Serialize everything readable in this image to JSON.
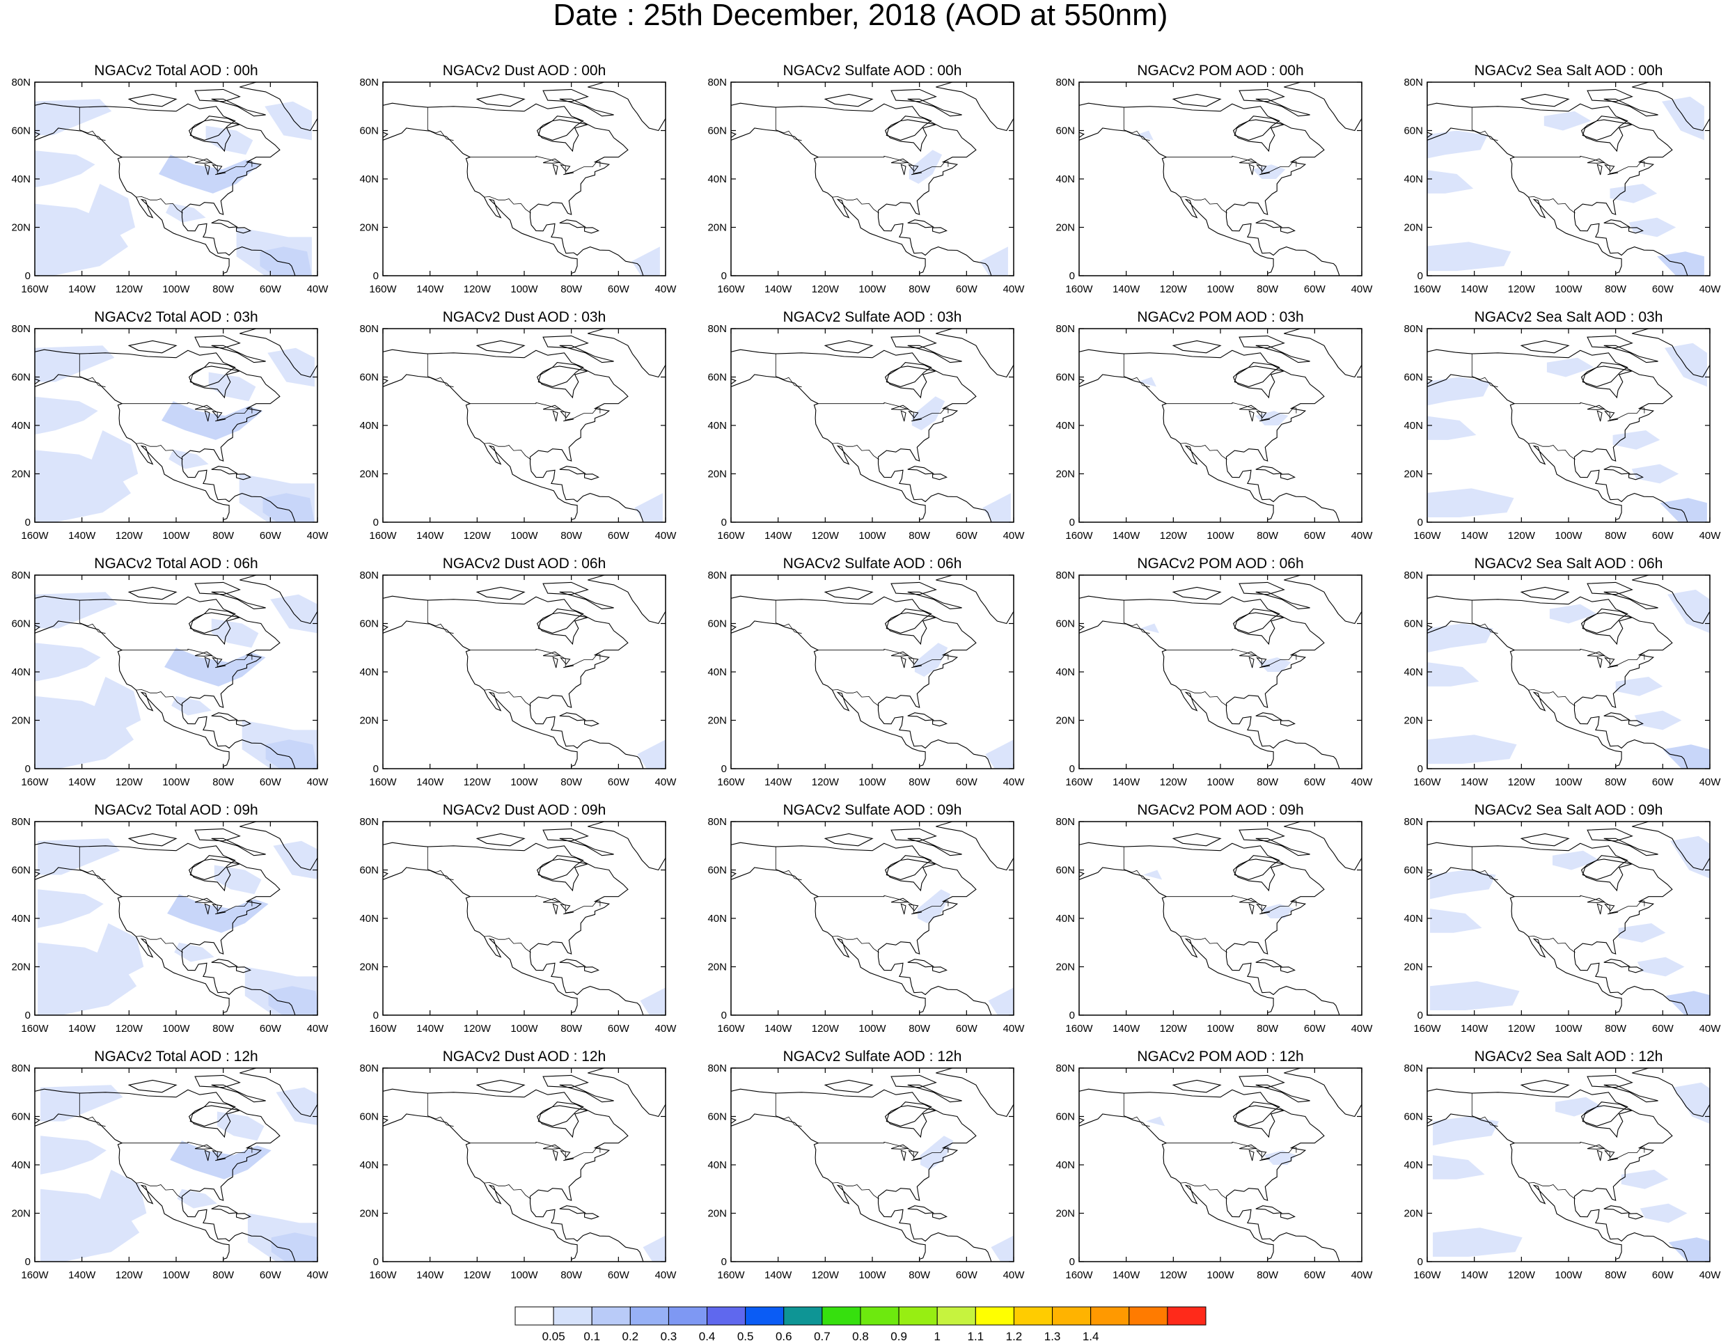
{
  "page_title": "Date : 25th December, 2018 (AOD at 550nm)",
  "columns": [
    {
      "key": "total",
      "name": "NGACv2 Total AOD",
      "titles": [
        "NGACv2 Total AOD : 00h",
        "NGACv2 Total AOD : 03h",
        "NGACv2 Total AOD : 06h",
        "NGACv2 Total AOD : 09h",
        "NGACv2 Total AOD  : 12h"
      ]
    },
    {
      "key": "dust",
      "name": "NGACv2 Dust AOD",
      "titles": [
        "NGACv2 Dust AOD : 00h",
        "NGACv2 Dust AOD : 03h",
        "NGACv2 Dust AOD : 06h",
        "NGACv2 Dust AOD : 09h",
        "NGACv2 Dust AOD : 12h"
      ]
    },
    {
      "key": "sulfate",
      "name": "NGACv2 Sulfate AOD",
      "titles": [
        "NGACv2 Sulfate AOD : 00h",
        "NGACv2 Sulfate AOD : 03h",
        "NGACv2 Sulfate AOD : 06h",
        "NGACv2 Sulfate AOD : 09h",
        "NGACv2 Sulfate AOD : 12h"
      ]
    },
    {
      "key": "pom",
      "name": "NGACv2 POM AOD",
      "titles": [
        "NGACv2 POM AOD : 00h",
        "NGACv2 POM AOD : 03h",
        "NGACv2 POM AOD : 06h",
        "NGACv2 POM AOD : 09h",
        "NGACv2 POM  AOD : 12h"
      ]
    },
    {
      "key": "seasalt",
      "name": "NGACv2 Sea Salt AOD",
      "titles": [
        "NGACv2 Sea Salt AOD : 00h",
        "NGACv2 Sea Salt AOD : 03h",
        "NGACv2 Sea Salt AOD : 06h",
        "NGACv2 Sea Salt  AOD : 09h",
        "NGACv2 Sea Salt  AOD : 12h"
      ]
    }
  ],
  "x_ticks": [
    "160W",
    "140W",
    "120W",
    "100W",
    "80W",
    "60W",
    "40W"
  ],
  "y_ticks": [
    "80N",
    "60N",
    "40N",
    "20N",
    "0"
  ],
  "colorbar": {
    "labels": [
      "0.05",
      "0.1",
      "0.2",
      "0.3",
      "0.4",
      "0.5",
      "0.6",
      "0.7",
      "0.8",
      "0.9",
      "1",
      "1.1",
      "1.2",
      "1.3",
      "1.4"
    ],
    "colors": [
      "#ffffff",
      "#d6e2fb",
      "#b9cbf8",
      "#97b1f6",
      "#7e98f3",
      "#5f68ee",
      "#0a5cf5",
      "#0e9595",
      "#36e00e",
      "#6de90e",
      "#97ee12",
      "#c6f33e",
      "#ffff00",
      "#ffcc00",
      "#ffb300",
      "#ff9900",
      "#ff7b00",
      "#ff2a1a"
    ]
  },
  "aod_fill_colors": {
    "light": "#dbe4fb",
    "medium": "#c8d6f9"
  }
}
